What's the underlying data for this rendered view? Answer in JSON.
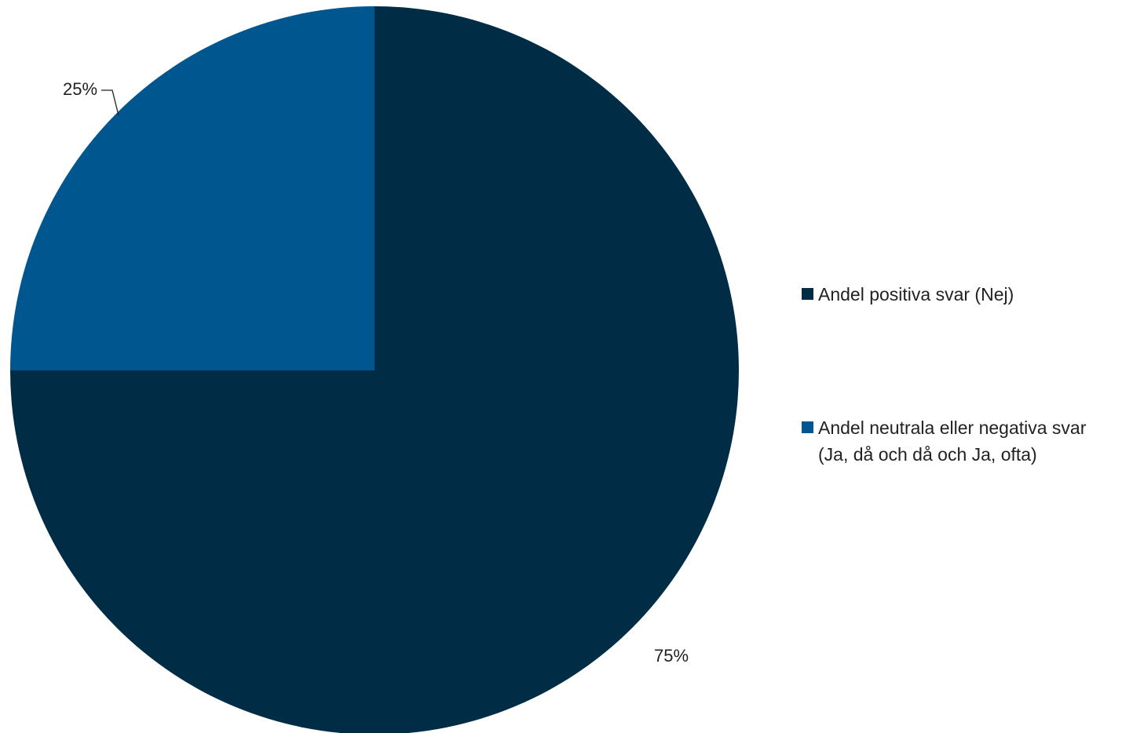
{
  "chart_data": {
    "type": "pie",
    "title": "",
    "slices": [
      {
        "name": "Andel positiva svar (Nej)",
        "value": 75,
        "label": "75%",
        "color": "#002c45",
        "legend_lines": [
          "Andel positiva svar (Nej)"
        ]
      },
      {
        "name": "Andel neutrala eller negativa svar (Ja, då och då och Ja, ofta)",
        "value": 25,
        "label": "25%",
        "color": "#00568f",
        "legend_lines": [
          "Andel neutrala eller negativa svar",
          "(Ja, då och då och Ja, ofta)"
        ]
      }
    ],
    "start_angle": "12 o'clock",
    "direction": "clockwise",
    "legend_position": "right"
  }
}
